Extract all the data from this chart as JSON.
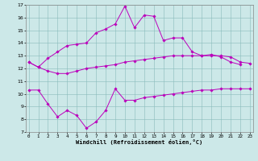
{
  "xlabel": "Windchill (Refroidissement éolien,°C)",
  "background_color": "#cce8e8",
  "line_color": "#bb00bb",
  "ylim": [
    7,
    17
  ],
  "yticks": [
    7,
    8,
    9,
    10,
    11,
    12,
    13,
    14,
    15,
    16,
    17
  ],
  "xticks": [
    0,
    1,
    2,
    3,
    4,
    5,
    6,
    7,
    8,
    9,
    10,
    11,
    12,
    13,
    14,
    15,
    16,
    17,
    18,
    19,
    20,
    21,
    22,
    23
  ],
  "hours": [
    0,
    1,
    2,
    3,
    4,
    5,
    6,
    7,
    8,
    9,
    10,
    11,
    12,
    13,
    14,
    15,
    16,
    17,
    18,
    19,
    20,
    21,
    22,
    23
  ],
  "series_top": [
    12.5,
    12.1,
    12.8,
    13.3,
    13.8,
    13.9,
    14.0,
    14.8,
    15.1,
    15.5,
    16.9,
    15.2,
    16.2,
    16.1,
    14.2,
    14.4,
    14.4,
    13.3,
    13.0,
    13.1,
    12.9,
    12.5,
    12.3,
    null
  ],
  "series_mid": [
    12.5,
    12.1,
    11.8,
    11.6,
    11.6,
    11.8,
    12.0,
    12.1,
    12.2,
    12.3,
    12.5,
    12.6,
    12.7,
    12.8,
    12.9,
    13.0,
    13.0,
    13.0,
    13.0,
    13.0,
    13.0,
    12.9,
    12.5,
    12.4
  ],
  "series_bot": [
    10.3,
    10.3,
    9.2,
    8.2,
    8.7,
    8.3,
    7.3,
    7.8,
    8.7,
    10.4,
    9.5,
    9.5,
    9.7,
    9.8,
    9.9,
    10.0,
    10.1,
    10.2,
    10.3,
    10.3,
    10.4,
    10.4,
    10.4,
    10.4
  ]
}
